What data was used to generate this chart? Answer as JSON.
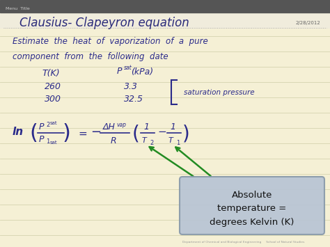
{
  "bg_color": "#f5f0d5",
  "title": "Clausius- Clapeyron equation",
  "title_color": "#2a2a7a",
  "date_text": "2/28/2012",
  "line1": "Estimate  the  heat  of  vaporization  of  a  pure",
  "line2": "component  from  the  following  date",
  "arrow_color": "#228B22",
  "box_color_face": "#b8c4d4",
  "box_color_edge": "#8899aa",
  "box_text": "Absolute\ntemperature =\ndegrees Kelvin (K)",
  "equation_color": "#2a2a8a",
  "notebook_line_color": "#c8c8a0",
  "nav_bar_color": "#555555",
  "figsize": [
    4.74,
    3.55
  ],
  "dpi": 100
}
